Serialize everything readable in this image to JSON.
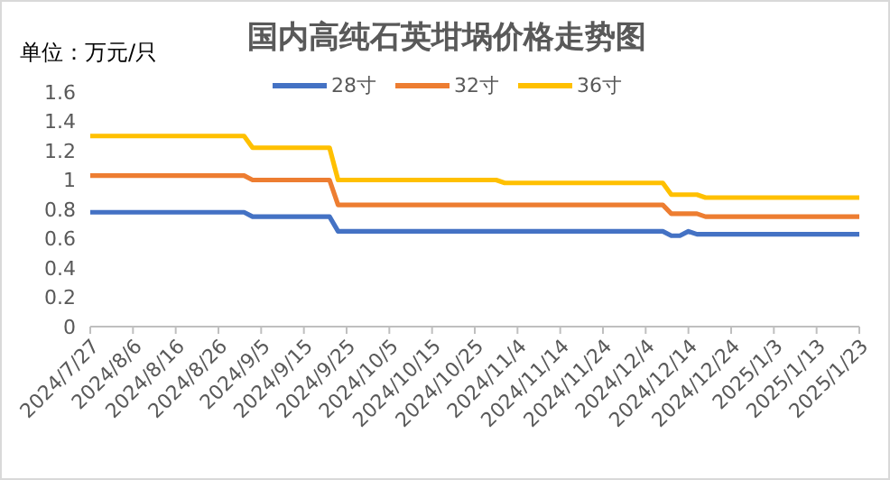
{
  "chart_data": {
    "type": "line",
    "title": "国内高纯石英坩埚价格走势图",
    "ylabel": "单位：万元/只",
    "legend": "top",
    "marker": "none",
    "line_style": "solid",
    "x": [
      "2024-07-27",
      "2024-09-01",
      "2024-09-03",
      "2024-09-21",
      "2024-09-23",
      "2024-10-30",
      "2024-11-01",
      "2024-12-08",
      "2024-12-10",
      "2024-12-12",
      "2024-12-14",
      "2024-12-16",
      "2024-12-18",
      "2025-01-23"
    ],
    "series": [
      {
        "name": "28寸",
        "color": "#4472c4",
        "values": [
          0.78,
          0.78,
          0.75,
          0.75,
          0.65,
          0.65,
          0.65,
          0.65,
          0.62,
          0.62,
          0.65,
          0.63,
          0.63,
          0.63
        ]
      },
      {
        "name": "32寸",
        "color": "#ed7d31",
        "values": [
          1.03,
          1.03,
          1.0,
          1.0,
          0.83,
          0.83,
          0.83,
          0.83,
          0.77,
          0.77,
          0.77,
          0.77,
          0.75,
          0.75
        ]
      },
      {
        "name": "36寸",
        "color": "#ffc000",
        "values": [
          1.3,
          1.3,
          1.22,
          1.22,
          1.0,
          1.0,
          0.98,
          0.98,
          0.9,
          0.9,
          0.9,
          0.9,
          0.88,
          0.88
        ]
      }
    ],
    "ylim": [
      0,
      1.6
    ],
    "yticks": [
      0,
      0.2,
      0.4,
      0.6,
      0.8,
      1,
      1.2,
      1.4,
      1.6
    ],
    "xlim": [
      "2024-07-27",
      "2025-01-23"
    ],
    "xticks": [
      {
        "value": "2024-07-27",
        "label": "2024/7/27"
      },
      {
        "value": "2024-08-06",
        "label": "2024/8/6"
      },
      {
        "value": "2024-08-16",
        "label": "2024/8/16"
      },
      {
        "value": "2024-08-26",
        "label": "2024/8/26"
      },
      {
        "value": "2024-09-05",
        "label": "2024/9/5"
      },
      {
        "value": "2024-09-15",
        "label": "2024/9/15"
      },
      {
        "value": "2024-09-25",
        "label": "2024/9/25"
      },
      {
        "value": "2024-10-05",
        "label": "2024/10/5"
      },
      {
        "value": "2024-10-15",
        "label": "2024/10/15"
      },
      {
        "value": "2024-10-25",
        "label": "2024/10/25"
      },
      {
        "value": "2024-11-04",
        "label": "2024/11/4"
      },
      {
        "value": "2024-11-14",
        "label": "2024/11/14"
      },
      {
        "value": "2024-11-24",
        "label": "2024/11/24"
      },
      {
        "value": "2024-12-04",
        "label": "2024/12/4"
      },
      {
        "value": "2024-12-14",
        "label": "2024/12/14"
      },
      {
        "value": "2024-12-24",
        "label": "2024/12/24"
      },
      {
        "value": "2025-01-03",
        "label": "2025/1/3"
      },
      {
        "value": "2025-01-13",
        "label": "2025/1/13"
      },
      {
        "value": "2025-01-23",
        "label": "2025/1/23"
      }
    ]
  }
}
